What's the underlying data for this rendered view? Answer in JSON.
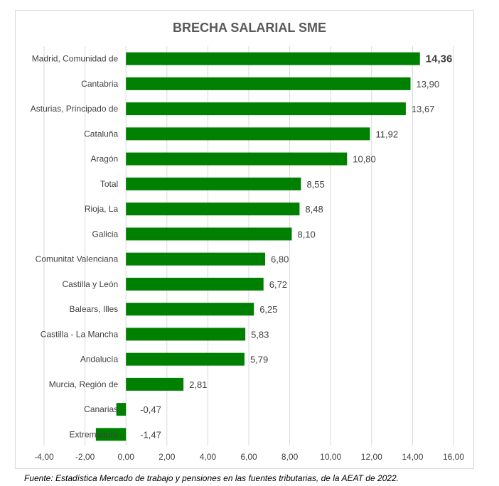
{
  "chart_data": {
    "type": "bar",
    "orientation": "horizontal",
    "title": "BRECHA SALARIAL SME",
    "categories": [
      "Madrid, Comunidad de",
      "Cantabria",
      "Asturias, Principado de",
      "Cataluña",
      "Aragón",
      "Total",
      "Rioja, La",
      "Galicia",
      "Comunitat Valenciana",
      "Castilla y León",
      "Balears, Illes",
      "Castilla - La Mancha",
      "Andalucía",
      "Murcia, Región de",
      "Canarias",
      "Extremadura"
    ],
    "values": [
      14.36,
      13.9,
      13.67,
      11.92,
      10.8,
      8.55,
      8.48,
      8.1,
      6.8,
      6.72,
      6.25,
      5.83,
      5.79,
      2.81,
      -0.47,
      -1.47
    ],
    "value_labels": [
      "14,36",
      "13,90",
      "13,67",
      "11,92",
      "10,80",
      "8,55",
      "8,48",
      "8,10",
      "6,80",
      "6,72",
      "6,25",
      "5,83",
      "5,79",
      "2,81",
      "-0,47",
      "-1,47"
    ],
    "xlim": [
      -4,
      16
    ],
    "x_ticks": [
      -4,
      -2,
      0,
      2,
      4,
      6,
      8,
      10,
      12,
      14,
      16
    ],
    "x_tick_labels": [
      "-4,00",
      "-2,00",
      "0,00",
      "2,00",
      "4,00",
      "6,00",
      "8,00",
      "10,00",
      "12,00",
      "14,00",
      "16,00"
    ],
    "grid": "vertical",
    "legend": "none",
    "xlabel": "",
    "ylabel": "",
    "colors": {
      "bar": "#008000",
      "grid": "#d9d9d9",
      "text": "#404040",
      "title": "#595959"
    }
  },
  "footer": {
    "source": "Fuente: Estadística Mercado de trabajo y pensiones en las fuentes tributarias, de la AEAT de 2022."
  }
}
